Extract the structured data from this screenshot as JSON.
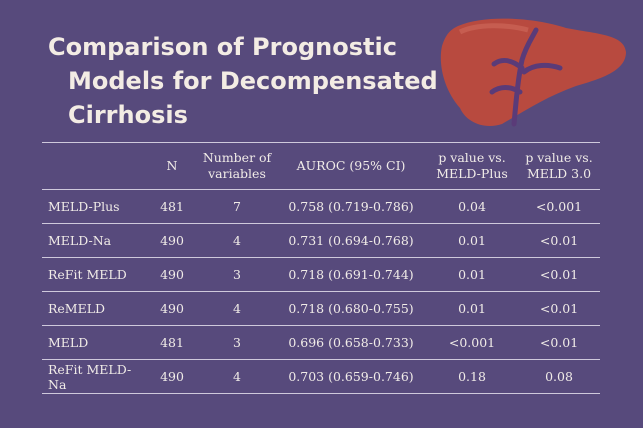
{
  "title": [
    "Comparison of Prognostic",
    "Models for Decompensated",
    "Cirrhosis"
  ],
  "colors": {
    "background": "#574a7c",
    "liver": "#b84a3f",
    "text": "#f3ece4"
  },
  "table": {
    "headers": [
      "",
      "N",
      "Number of variables",
      "AUROC (95% CI)",
      "p value vs. MELD-Plus",
      "p value vs. MELD 3.0"
    ],
    "rows": [
      [
        "MELD-Plus",
        "481",
        "7",
        "0.758 (0.719-0.786)",
        "0.04",
        "<0.001"
      ],
      [
        "MELD-Na",
        "490",
        "4",
        "0.731 (0.694-0.768)",
        "0.01",
        "<0.01"
      ],
      [
        "ReFit MELD",
        "490",
        "3",
        "0.718 (0.691-0.744)",
        "0.01",
        "<0.01"
      ],
      [
        "ReMELD",
        "490",
        "4",
        "0.718 (0.680-0.755)",
        "0.01",
        "<0.01"
      ],
      [
        "MELD",
        "481",
        "3",
        "0.696 (0.658-0.733)",
        "<0.001",
        "<0.01"
      ],
      [
        "ReFit MELD-Na",
        "490",
        "4",
        "0.703 (0.659-0.746)",
        "0.18",
        "0.08"
      ]
    ]
  }
}
